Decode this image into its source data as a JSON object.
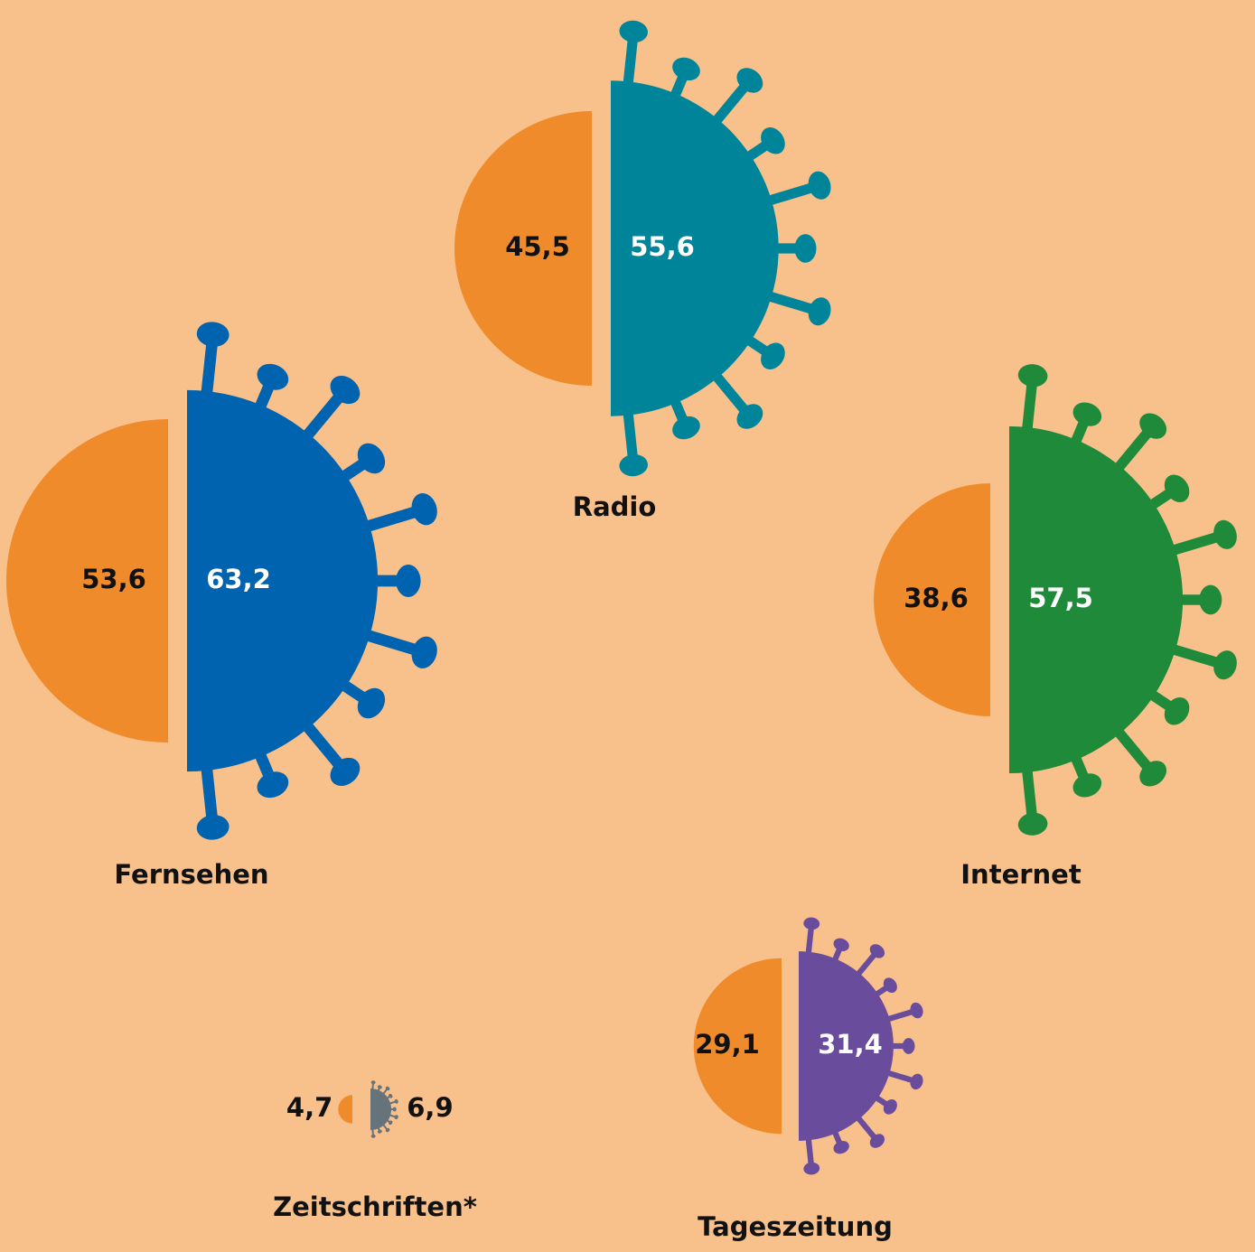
{
  "chart_data": {
    "type": "virus-half-bubble",
    "categories": [
      "Radio",
      "Fernsehen",
      "Internet",
      "Tageszeitung",
      "Zeitschriften*"
    ],
    "series": [
      {
        "color": "#ef8b2a",
        "values": [
          45.5,
          53.6,
          38.6,
          29.1,
          4.7
        ],
        "value_labels": [
          "45,5",
          "53,6",
          "38,6",
          "29,1",
          "4,7"
        ]
      },
      {
        "colors": [
          "#00849a",
          "#0063b0",
          "#1f8a3a",
          "#6a4c9c",
          "#67737a"
        ],
        "values": [
          55.6,
          63.2,
          57.5,
          31.4,
          6.9
        ],
        "value_labels": [
          "55,6",
          "63,2",
          "57,5",
          "31,4",
          "6,9"
        ]
      }
    ]
  }
}
